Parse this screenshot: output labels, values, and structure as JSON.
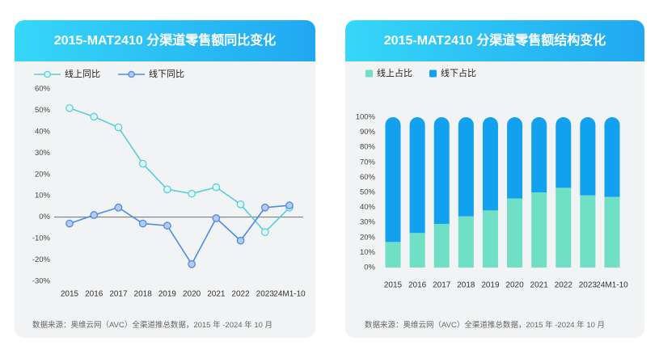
{
  "chart_data": [
    {
      "type": "line",
      "title": "2015-MAT2410 分渠道零售额同比变化",
      "categories": [
        "2015",
        "2016",
        "2017",
        "2018",
        "2019",
        "2020",
        "2021",
        "2022",
        "2023",
        "24M1-10"
      ],
      "series": [
        {
          "name": "线上同比",
          "values": [
            51,
            47,
            42,
            25,
            13,
            11,
            14,
            6,
            -7,
            4.5
          ],
          "color": "#57cfd9",
          "marker_fill": "#e2f9fa"
        },
        {
          "name": "线下同比",
          "values": [
            -3,
            1,
            4.5,
            -3,
            -4,
            -22,
            -0.5,
            -11,
            4.5,
            5.5
          ],
          "color": "#4a8ce3",
          "marker_fill": "#b6caed"
        }
      ],
      "ylim": [
        -30,
        60
      ],
      "y_tick_labels": [
        "60%",
        "50%",
        "40%",
        "30%",
        "20%",
        "10%",
        "0%",
        "-10%",
        "-20%",
        "-30%"
      ],
      "zero_line": true,
      "grid": false,
      "legend": "top-left",
      "source": "数据来源：奥维云网（AVC）全渠道推总数据，2015 年 -2024 年 10 月"
    },
    {
      "type": "bar",
      "stacked": true,
      "title": "2015-MAT2410 分渠道零售额结构变化",
      "categories": [
        "2015",
        "2016",
        "2017",
        "2018",
        "2019",
        "2020",
        "2021",
        "2022",
        "2023",
        "24M1-10"
      ],
      "series": [
        {
          "name": "线上占比",
          "values": [
            17,
            23,
            29,
            34,
            38,
            46,
            50,
            53,
            48,
            47
          ],
          "color": "#6fdfc5"
        },
        {
          "name": "线下占比",
          "values": [
            83,
            77,
            71,
            66,
            62,
            54,
            50,
            47,
            52,
            53
          ],
          "color": "#12a1ee"
        }
      ],
      "ylim": [
        0,
        100
      ],
      "y_tick_labels": [
        "100%",
        "90%",
        "80%",
        "70%",
        "60%",
        "50%",
        "40%",
        "30%",
        "20%",
        "10%",
        "0%"
      ],
      "grid": false,
      "legend": "top-left",
      "source": "数据来源：奥维云网（AVC）全渠道推总数据，2015 年 -2024 年 10 月"
    }
  ]
}
